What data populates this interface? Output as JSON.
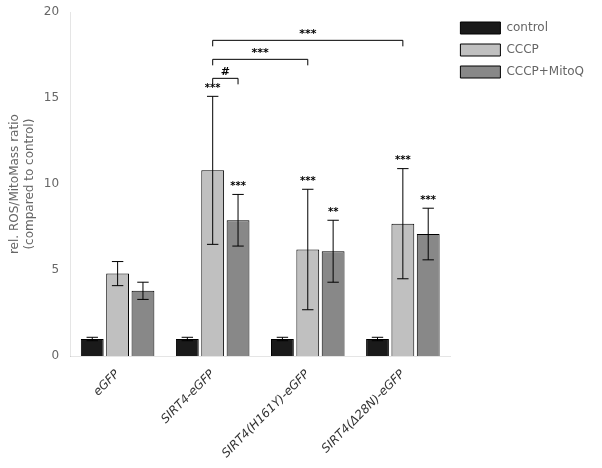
{
  "chart_data": {
    "type": "bar",
    "categories": [
      "eGFP",
      "SIRT4-eGFP",
      "SIRT4(H161Y)-eGFP",
      "SIRT4(Δ28N)-eGFP"
    ],
    "series": [
      {
        "name": "control",
        "color": "#1a1a1a",
        "values": [
          1.0,
          1.0,
          1.0,
          1.0
        ],
        "errors": [
          0.1,
          0.1,
          0.1,
          0.1
        ]
      },
      {
        "name": "CCCP",
        "color": "#c0c0c0",
        "values": [
          4.8,
          10.8,
          6.2,
          7.7
        ],
        "errors": [
          0.7,
          4.3,
          3.5,
          3.2
        ]
      },
      {
        "name": "CCCP+MitoQ",
        "color": "#888888",
        "values": [
          3.8,
          7.9,
          6.1,
          7.1
        ],
        "errors": [
          0.5,
          1.5,
          1.8,
          1.5
        ]
      }
    ],
    "ylabel": "rel. ROS/MitoMass ratio\n(compared to control)",
    "ylim": [
      0,
      20
    ],
    "yticks": [
      0,
      5,
      10,
      15,
      20
    ],
    "grid": false,
    "legend": "upper right",
    "annotations": [
      {
        "text": "***",
        "series": "CCCP",
        "category": "SIRT4-eGFP"
      },
      {
        "text": "***",
        "series": "CCCP",
        "category": "SIRT4(H161Y)-eGFP"
      },
      {
        "text": "***",
        "series": "CCCP",
        "category": "SIRT4(Δ28N)-eGFP"
      },
      {
        "text": "***",
        "series": "CCCP+MitoQ",
        "category": "SIRT4-eGFP"
      },
      {
        "text": "**",
        "series": "CCCP+MitoQ",
        "category": "SIRT4(H161Y)-eGFP"
      },
      {
        "text": "***",
        "series": "CCCP+MitoQ",
        "category": "SIRT4(Δ28N)-eGFP"
      },
      {
        "text": "#",
        "bracket": [
          {
            "series": "CCCP",
            "category": "SIRT4-eGFP"
          },
          {
            "series": "CCCP+MitoQ",
            "category": "SIRT4-eGFP"
          }
        ]
      },
      {
        "text": "***",
        "bracket": [
          {
            "series": "CCCP",
            "category": "SIRT4-eGFP"
          },
          {
            "series": "CCCP",
            "category": "SIRT4(H161Y)-eGFP"
          }
        ]
      },
      {
        "text": "***",
        "bracket": [
          {
            "series": "CCCP",
            "category": "SIRT4-eGFP"
          },
          {
            "series": "CCCP",
            "category": "SIRT4(Δ28N)-eGFP"
          }
        ]
      }
    ]
  }
}
